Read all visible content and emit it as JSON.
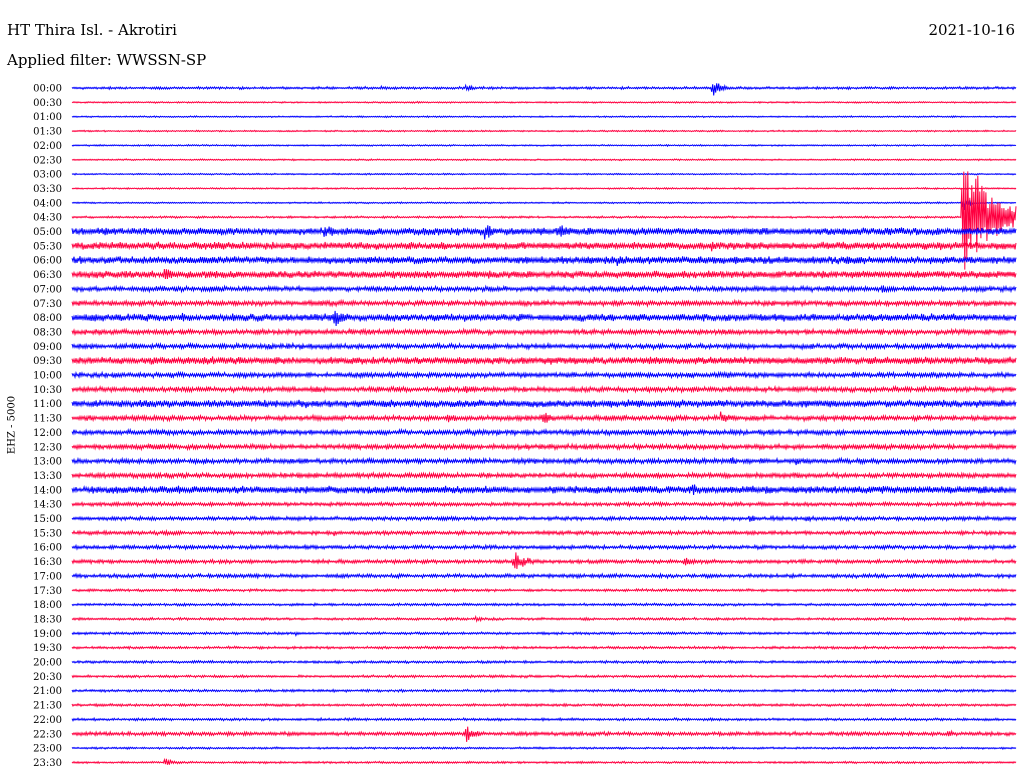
{
  "header": {
    "station": "HT Thira Isl. - Akrotiri",
    "date": "2021-10-16",
    "filter": "Applied filter: WWSSN-SP"
  },
  "channel_label": "EHZ - 5000",
  "colors": {
    "even_rows": "#0000ff",
    "odd_rows": "#ff0040",
    "background": "#ffffff"
  },
  "chart_data": {
    "type": "line",
    "title": "HT Thira Isl. - Akrotiri",
    "ylabel": "EHZ - 5000",
    "grid": false,
    "row_labels": [
      "00:00",
      "00:30",
      "01:00",
      "01:30",
      "02:00",
      "02:30",
      "03:00",
      "03:30",
      "04:00",
      "04:30",
      "05:00",
      "05:30",
      "06:00",
      "06:30",
      "07:00",
      "07:30",
      "08:00",
      "08:30",
      "09:00",
      "09:30",
      "10:00",
      "10:30",
      "11:00",
      "11:30",
      "12:00",
      "12:30",
      "13:00",
      "13:30",
      "14:00",
      "14:30",
      "15:00",
      "15:30",
      "16:00",
      "16:30",
      "17:00",
      "17:30",
      "18:00",
      "18:30",
      "19:00",
      "19:30",
      "20:00",
      "20:30",
      "21:00",
      "21:30",
      "22:00",
      "22:30",
      "23:00",
      "23:30"
    ],
    "noise_level": [
      1,
      0.6,
      0.6,
      0.6,
      0.6,
      0.6,
      0.6,
      0.6,
      0.6,
      0.8,
      3,
      3,
      3,
      3,
      2,
      2,
      3,
      2,
      2,
      3,
      2,
      2,
      3,
      2,
      2,
      2,
      2,
      2,
      3,
      1.5,
      1.5,
      1.5,
      1.5,
      1.5,
      1.5,
      1,
      1,
      1,
      1,
      1,
      1,
      1,
      1,
      1,
      1,
      1.5,
      0.8,
      0.8
    ],
    "events": [
      {
        "row": 0,
        "at": 0.68,
        "amp": 12,
        "dur": 0.02
      },
      {
        "row": 0,
        "at": 0.42,
        "amp": 4,
        "dur": 0.02
      },
      {
        "row": 0,
        "at": 0.33,
        "amp": 3,
        "dur": 0.02
      },
      {
        "row": 8,
        "at": 0.945,
        "amp": 14,
        "dur": 0.01
      },
      {
        "row": 9,
        "at": 0.945,
        "amp": 95,
        "dur": 0.06
      },
      {
        "row": 10,
        "at": 0.27,
        "amp": 10,
        "dur": 0.02
      },
      {
        "row": 10,
        "at": 0.44,
        "amp": 10,
        "dur": 0.03
      },
      {
        "row": 10,
        "at": 0.52,
        "amp": 10,
        "dur": 0.03
      },
      {
        "row": 11,
        "at": 0.68,
        "amp": 7,
        "dur": 0.02
      },
      {
        "row": 11,
        "at": 0.92,
        "amp": 8,
        "dur": 0.02
      },
      {
        "row": 12,
        "at": 0.34,
        "amp": 8,
        "dur": 0.04
      },
      {
        "row": 12,
        "at": 0.58,
        "amp": 8,
        "dur": 0.03
      },
      {
        "row": 13,
        "at": 0.1,
        "amp": 8,
        "dur": 0.04
      },
      {
        "row": 14,
        "at": 0.86,
        "amp": 6,
        "dur": 0.02
      },
      {
        "row": 16,
        "at": 0.28,
        "amp": 16,
        "dur": 0.02
      },
      {
        "row": 16,
        "at": 0.12,
        "amp": 6,
        "dur": 0.02
      },
      {
        "row": 18,
        "at": 0.21,
        "amp": 6,
        "dur": 0.02
      },
      {
        "row": 18,
        "at": 0.93,
        "amp": 5,
        "dur": 0.02
      },
      {
        "row": 19,
        "at": 0.17,
        "amp": 5,
        "dur": 0.04
      },
      {
        "row": 20,
        "at": 0.69,
        "amp": 5,
        "dur": 0.03
      },
      {
        "row": 20,
        "at": 0.83,
        "amp": 5,
        "dur": 0.01
      },
      {
        "row": 21,
        "at": 0.42,
        "amp": 5,
        "dur": 0.03
      },
      {
        "row": 22,
        "at": 0.25,
        "amp": 6,
        "dur": 0.01
      },
      {
        "row": 22,
        "at": 0.6,
        "amp": 6,
        "dur": 0.02
      },
      {
        "row": 23,
        "at": 0.4,
        "amp": 8,
        "dur": 0.02
      },
      {
        "row": 23,
        "at": 0.5,
        "amp": 10,
        "dur": 0.02
      },
      {
        "row": 23,
        "at": 0.69,
        "amp": 8,
        "dur": 0.03
      },
      {
        "row": 24,
        "at": 0.73,
        "amp": 5,
        "dur": 0.02
      },
      {
        "row": 25,
        "at": 0.42,
        "amp": 4,
        "dur": 0.03
      },
      {
        "row": 26,
        "at": 0.7,
        "amp": 8,
        "dur": 0.01
      },
      {
        "row": 26,
        "at": 0.77,
        "amp": 6,
        "dur": 0.01
      },
      {
        "row": 27,
        "at": 0.66,
        "amp": 5,
        "dur": 0.02
      },
      {
        "row": 28,
        "at": 0.45,
        "amp": 5,
        "dur": 0.01
      },
      {
        "row": 28,
        "at": 0.6,
        "amp": 6,
        "dur": 0.05
      },
      {
        "row": 28,
        "at": 0.66,
        "amp": 8,
        "dur": 0.02
      },
      {
        "row": 28,
        "at": 0.9,
        "amp": 5,
        "dur": 0.01
      },
      {
        "row": 30,
        "at": 0.72,
        "amp": 8,
        "dur": 0.01
      },
      {
        "row": 30,
        "at": 0.78,
        "amp": 6,
        "dur": 0.01
      },
      {
        "row": 31,
        "at": 0.28,
        "amp": 4,
        "dur": 0.01
      },
      {
        "row": 32,
        "at": 0.25,
        "amp": 4,
        "dur": 0.01
      },
      {
        "row": 33,
        "at": 0.47,
        "amp": 12,
        "dur": 0.03
      },
      {
        "row": 33,
        "at": 0.65,
        "amp": 8,
        "dur": 0.02
      },
      {
        "row": 34,
        "at": 0.19,
        "amp": 4,
        "dur": 0.01
      },
      {
        "row": 37,
        "at": 0.43,
        "amp": 5,
        "dur": 0.01
      },
      {
        "row": 38,
        "at": 0.24,
        "amp": 3,
        "dur": 0.01
      },
      {
        "row": 45,
        "at": 0.42,
        "amp": 12,
        "dur": 0.02
      },
      {
        "row": 45,
        "at": 0.93,
        "amp": 8,
        "dur": 0.01
      },
      {
        "row": 47,
        "at": 0.1,
        "amp": 6,
        "dur": 0.02
      }
    ]
  }
}
